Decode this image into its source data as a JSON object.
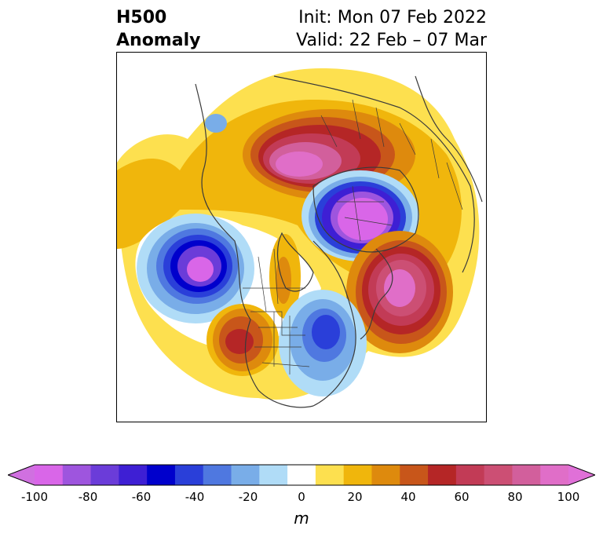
{
  "header": {
    "title_line1": "H500",
    "title_line2": "Anomaly",
    "init_text": "Init: Mon 07 Feb 2022",
    "valid_text": "Valid: 22 Feb – 07 Mar"
  },
  "map": {
    "projection": "polar-stereographic",
    "region": "Northern Hemisphere"
  },
  "colorbar": {
    "unit": "m",
    "ticks": [
      "-100",
      "-80",
      "-60",
      "-40",
      "-20",
      "0",
      "20",
      "40",
      "60",
      "80",
      "100"
    ],
    "levels": [
      -100,
      -90,
      -80,
      -70,
      -60,
      -50,
      -40,
      -30,
      -20,
      -10,
      10,
      20,
      30,
      40,
      50,
      60,
      70,
      80,
      90,
      100
    ],
    "colors": [
      "#d966e8",
      "#9e55de",
      "#6b3cd9",
      "#3e1fd4",
      "#0000cc",
      "#2a3fd9",
      "#4f78e0",
      "#79ade8",
      "#b0dcf7",
      "#ffffff",
      "#fde04f",
      "#f0b60c",
      "#de8a0d",
      "#c8561a",
      "#b52626",
      "#c23b56",
      "#cc4f74",
      "#d25f9c",
      "#e06ec8"
    ],
    "extend_min_color": "#d070e0",
    "extend_max_color": "#e070d8"
  }
}
